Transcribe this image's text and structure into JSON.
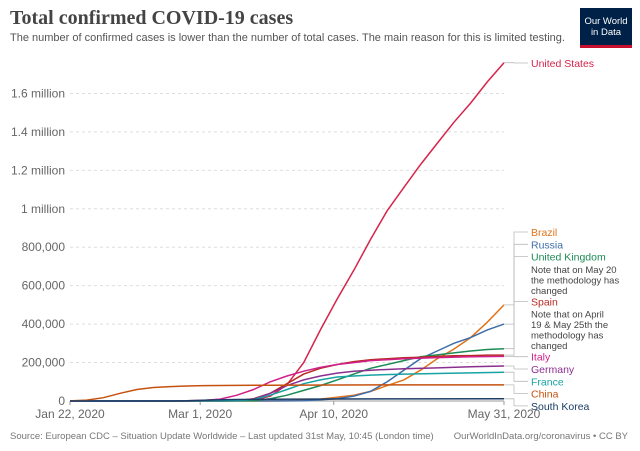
{
  "header": {
    "title": "Total confirmed COVID-19 cases",
    "subtitle": "The number of confirmed cases is lower than the number of total cases. The main reason for this is limited testing.",
    "logo_line1": "Our World",
    "logo_line2": "in Data"
  },
  "footer": {
    "source": "Source: European CDC – Situation Update Worldwide – Last updated 31st May, 10:45 (London time)",
    "link": "OurWorldInData.org/coronavirus • CC BY"
  },
  "chart_data": {
    "type": "line",
    "title": "Total confirmed COVID-19 cases",
    "xlabel": "",
    "ylabel": "",
    "x_range": [
      "Jan 22, 2020",
      "May 31, 2020"
    ],
    "x_day_range": [
      0,
      130
    ],
    "ylim": [
      0,
      1800000
    ],
    "x_ticks": [
      {
        "day": 0,
        "label": "Jan 22, 2020"
      },
      {
        "day": 39,
        "label": "Mar 1, 2020"
      },
      {
        "day": 79,
        "label": "Apr 10, 2020"
      },
      {
        "day": 130,
        "label": "May 31, 2020"
      }
    ],
    "y_ticks": [
      {
        "value": 0,
        "label": "0"
      },
      {
        "value": 200000,
        "label": "200,000"
      },
      {
        "value": 400000,
        "label": "400,000"
      },
      {
        "value": 600000,
        "label": "600,000"
      },
      {
        "value": 800000,
        "label": "800,000"
      },
      {
        "value": 1000000,
        "label": "1 million"
      },
      {
        "value": 1200000,
        "label": "1.2 million"
      },
      {
        "value": 1400000,
        "label": "1.4 million"
      },
      {
        "value": 1600000,
        "label": "1.6 million"
      }
    ],
    "grid": true,
    "series": [
      {
        "name": "United States",
        "color": "#d6244b",
        "points": [
          [
            0,
            0
          ],
          [
            45,
            500
          ],
          [
            50,
            1500
          ],
          [
            55,
            5000
          ],
          [
            60,
            25000
          ],
          [
            65,
            85000
          ],
          [
            70,
            200000
          ],
          [
            75,
            370000
          ],
          [
            80,
            530000
          ],
          [
            85,
            680000
          ],
          [
            90,
            840000
          ],
          [
            95,
            990000
          ],
          [
            100,
            1110000
          ],
          [
            105,
            1230000
          ],
          [
            110,
            1340000
          ],
          [
            115,
            1450000
          ],
          [
            120,
            1550000
          ],
          [
            125,
            1660000
          ],
          [
            130,
            1760000
          ]
        ]
      },
      {
        "name": "Brazil",
        "color": "#e0741c",
        "points": [
          [
            0,
            0
          ],
          [
            60,
            200
          ],
          [
            65,
            1500
          ],
          [
            70,
            5000
          ],
          [
            75,
            10000
          ],
          [
            80,
            20000
          ],
          [
            85,
            30000
          ],
          [
            90,
            50000
          ],
          [
            95,
            80000
          ],
          [
            100,
            110000
          ],
          [
            105,
            160000
          ],
          [
            110,
            220000
          ],
          [
            115,
            270000
          ],
          [
            120,
            330000
          ],
          [
            125,
            410000
          ],
          [
            130,
            500000
          ]
        ]
      },
      {
        "name": "Russia",
        "color": "#3e6ea8",
        "points": [
          [
            0,
            0
          ],
          [
            65,
            300
          ],
          [
            70,
            1800
          ],
          [
            75,
            6000
          ],
          [
            80,
            12000
          ],
          [
            85,
            25000
          ],
          [
            90,
            50000
          ],
          [
            95,
            100000
          ],
          [
            100,
            160000
          ],
          [
            105,
            220000
          ],
          [
            110,
            260000
          ],
          [
            115,
            300000
          ],
          [
            120,
            330000
          ],
          [
            125,
            370000
          ],
          [
            130,
            400000
          ]
        ]
      },
      {
        "name": "United Kingdom",
        "color": "#1d8b55",
        "points": [
          [
            0,
            0
          ],
          [
            50,
            300
          ],
          [
            55,
            2000
          ],
          [
            60,
            12000
          ],
          [
            65,
            30000
          ],
          [
            70,
            55000
          ],
          [
            75,
            80000
          ],
          [
            80,
            110000
          ],
          [
            85,
            140000
          ],
          [
            90,
            170000
          ],
          [
            95,
            190000
          ],
          [
            100,
            210000
          ],
          [
            105,
            230000
          ],
          [
            110,
            240000
          ],
          [
            115,
            250000
          ],
          [
            120,
            260000
          ],
          [
            125,
            268000
          ],
          [
            130,
            272000
          ]
        ]
      },
      {
        "name": "Spain",
        "color": "#b52b23",
        "points": [
          [
            0,
            0
          ],
          [
            45,
            100
          ],
          [
            50,
            1500
          ],
          [
            55,
            12000
          ],
          [
            60,
            40000
          ],
          [
            65,
            90000
          ],
          [
            70,
            140000
          ],
          [
            75,
            170000
          ],
          [
            80,
            190000
          ],
          [
            85,
            205000
          ],
          [
            90,
            215000
          ],
          [
            95,
            220000
          ],
          [
            100,
            225000
          ],
          [
            105,
            228000
          ],
          [
            110,
            232000
          ],
          [
            115,
            235000
          ],
          [
            120,
            236000
          ],
          [
            125,
            239000
          ],
          [
            130,
            239000
          ]
        ]
      },
      {
        "name": "Italy",
        "color": "#d11f8a",
        "points": [
          [
            0,
            0
          ],
          [
            35,
            1000
          ],
          [
            40,
            3000
          ],
          [
            45,
            10000
          ],
          [
            50,
            30000
          ],
          [
            55,
            60000
          ],
          [
            60,
            100000
          ],
          [
            65,
            130000
          ],
          [
            70,
            155000
          ],
          [
            75,
            175000
          ],
          [
            80,
            190000
          ],
          [
            85,
            200000
          ],
          [
            90,
            210000
          ],
          [
            95,
            215000
          ],
          [
            100,
            220000
          ],
          [
            110,
            226000
          ],
          [
            120,
            230000
          ],
          [
            130,
            232000
          ]
        ]
      },
      {
        "name": "Germany",
        "color": "#8b2f8f",
        "points": [
          [
            0,
            0
          ],
          [
            45,
            300
          ],
          [
            50,
            2000
          ],
          [
            55,
            10000
          ],
          [
            60,
            40000
          ],
          [
            65,
            80000
          ],
          [
            70,
            110000
          ],
          [
            75,
            130000
          ],
          [
            80,
            145000
          ],
          [
            85,
            155000
          ],
          [
            90,
            160000
          ],
          [
            100,
            168000
          ],
          [
            110,
            172000
          ],
          [
            120,
            178000
          ],
          [
            130,
            182000
          ]
        ]
      },
      {
        "name": "France",
        "color": "#17a3a3",
        "points": [
          [
            0,
            0
          ],
          [
            45,
            300
          ],
          [
            50,
            1500
          ],
          [
            55,
            8000
          ],
          [
            60,
            30000
          ],
          [
            65,
            60000
          ],
          [
            70,
            90000
          ],
          [
            75,
            110000
          ],
          [
            80,
            125000
          ],
          [
            85,
            130000
          ],
          [
            90,
            135000
          ],
          [
            100,
            140000
          ],
          [
            110,
            143000
          ],
          [
            120,
            146000
          ],
          [
            130,
            150000
          ]
        ]
      },
      {
        "name": "China",
        "color": "#c6510f",
        "points": [
          [
            0,
            550
          ],
          [
            5,
            4500
          ],
          [
            10,
            17000
          ],
          [
            15,
            40000
          ],
          [
            20,
            60000
          ],
          [
            25,
            70000
          ],
          [
            30,
            75000
          ],
          [
            35,
            78000
          ],
          [
            40,
            80000
          ],
          [
            50,
            81000
          ],
          [
            60,
            82000
          ],
          [
            80,
            83000
          ],
          [
            100,
            84000
          ],
          [
            130,
            84000
          ]
        ]
      },
      {
        "name": "South Korea",
        "color": "#1c3d66",
        "points": [
          [
            0,
            0
          ],
          [
            30,
            100
          ],
          [
            35,
            1000
          ],
          [
            40,
            4000
          ],
          [
            45,
            7000
          ],
          [
            50,
            8000
          ],
          [
            60,
            9000
          ],
          [
            80,
            10500
          ],
          [
            100,
            10800
          ],
          [
            130,
            11500
          ]
        ]
      }
    ],
    "labels": [
      {
        "text": "United States",
        "series": "United States",
        "color": "#d6244b"
      },
      {
        "text": "Brazil",
        "series": "Brazil",
        "color": "#e0741c"
      },
      {
        "text": "Russia",
        "series": "Russia",
        "color": "#3e6ea8"
      },
      {
        "text": "United Kingdom",
        "series": "United Kingdom",
        "color": "#1d8b55"
      },
      {
        "text": "Note that on May 20 the methodology has changed",
        "series": "United Kingdom",
        "color": "#444444",
        "note": true
      },
      {
        "text": "Spain",
        "series": "Spain",
        "color": "#b52b23"
      },
      {
        "text": "Note that on April 19 & May 25th the methodology has changed",
        "series": "Spain",
        "color": "#444444",
        "note": true
      },
      {
        "text": "Italy",
        "series": "Italy",
        "color": "#d11f8a"
      },
      {
        "text": "Germany",
        "series": "Germany",
        "color": "#8b2f8f"
      },
      {
        "text": "France",
        "series": "France",
        "color": "#17a3a3"
      },
      {
        "text": "China",
        "series": "China",
        "color": "#c6510f"
      },
      {
        "text": "South Korea",
        "series": "South Korea",
        "color": "#1c3d66"
      }
    ]
  }
}
